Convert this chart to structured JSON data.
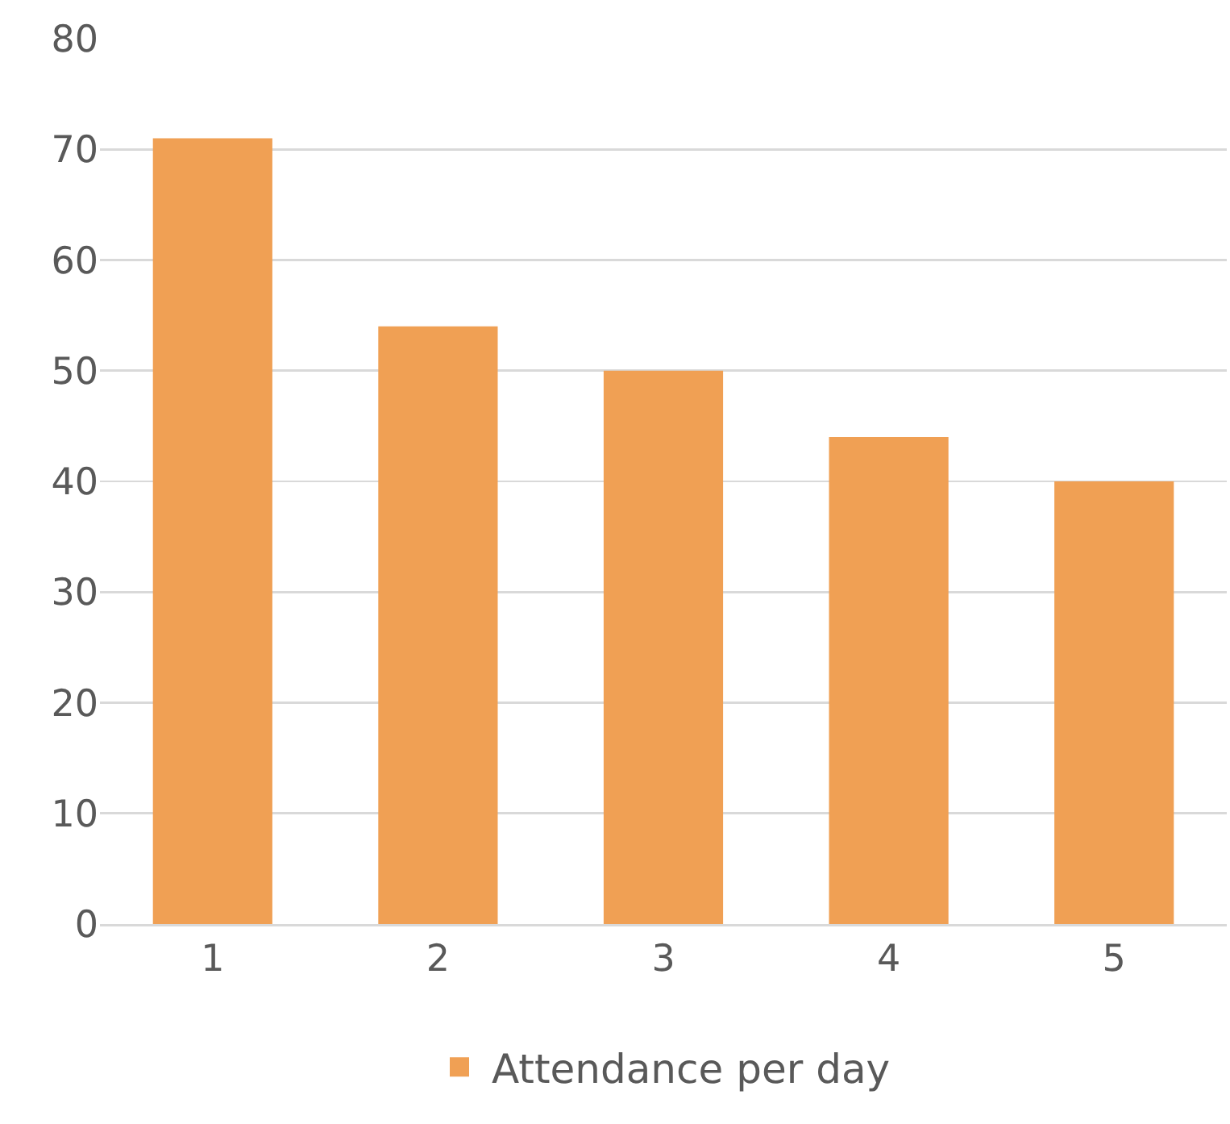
{
  "chart_data": {
    "type": "bar",
    "categories": [
      "1",
      "2",
      "3",
      "4",
      "5"
    ],
    "series": [
      {
        "name": "Attendance per day",
        "color": "#f0a054",
        "values": [
          71,
          54,
          50,
          44,
          40
        ]
      }
    ],
    "ylim": [
      0,
      80
    ],
    "yticks": [
      0,
      10,
      20,
      30,
      40,
      50,
      60,
      70,
      80
    ],
    "grid": "y",
    "legend": "bottom"
  }
}
